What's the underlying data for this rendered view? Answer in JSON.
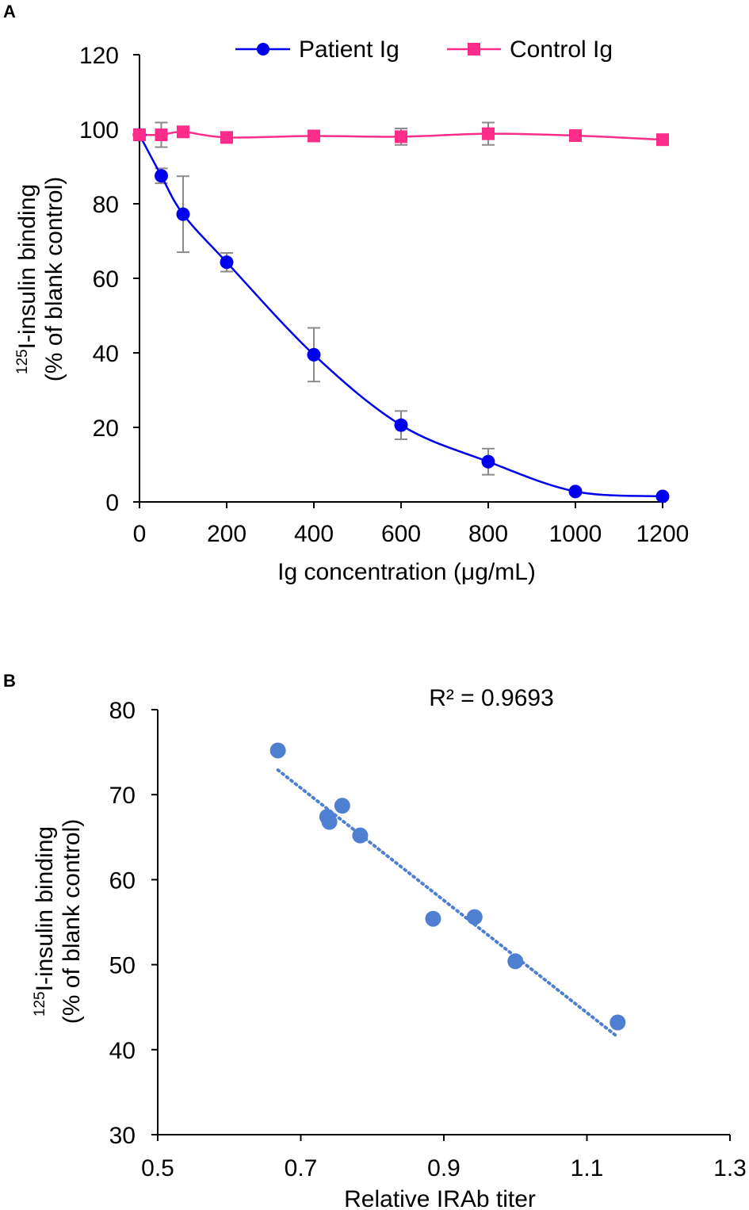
{
  "chart_data": [
    {
      "panel": "A",
      "type": "line",
      "title": "",
      "xlabel": "Ig concentration (μg/mL)",
      "ylabel_sup": "125",
      "ylabel_line1": "I-insulin binding",
      "ylabel_line2": "(% of blank control)",
      "xlim": [
        0,
        1200
      ],
      "ylim": [
        0,
        120
      ],
      "xticks": [
        0,
        200,
        400,
        600,
        800,
        1000,
        1200
      ],
      "yticks": [
        0,
        20,
        40,
        60,
        80,
        100,
        120
      ],
      "grid": false,
      "legend_position": "top",
      "series": [
        {
          "name": "Patient Ig",
          "color": "#0000ee",
          "marker": "circle",
          "x": [
            0,
            50,
            100,
            200,
            400,
            600,
            800,
            1000,
            1200
          ],
          "y": [
            98.5,
            87.5,
            77.2,
            64.3,
            39.5,
            20.6,
            10.8,
            2.8,
            1.5
          ],
          "err": [
            0,
            2,
            10.2,
            2.5,
            7.2,
            3.8,
            3.5,
            0,
            0
          ]
        },
        {
          "name": "Control Ig",
          "color": "#ff2d8a",
          "marker": "square",
          "x": [
            0,
            50,
            100,
            200,
            400,
            600,
            800,
            1000,
            1200
          ],
          "y": [
            98.5,
            98.5,
            99.3,
            97.8,
            98.2,
            98.0,
            98.8,
            98.3,
            97.2
          ],
          "err": [
            0,
            3.3,
            0,
            0,
            0,
            2.2,
            3.0,
            0,
            0
          ]
        }
      ]
    },
    {
      "panel": "B",
      "type": "scatter",
      "title": "",
      "xlabel": "Relative IRAb titer",
      "ylabel_sup": "125",
      "ylabel_line1": "I-insulin binding",
      "ylabel_line2": "(% of blank control)",
      "xlim": [
        0.5,
        1.3
      ],
      "ylim": [
        30,
        80
      ],
      "xticks": [
        "0.5",
        "0.7",
        "0.9",
        "1.1",
        "1.3"
      ],
      "yticks": [
        30,
        40,
        50,
        60,
        70,
        80
      ],
      "grid": false,
      "annotation": "R² = 0.9693",
      "point_color": "#4f7fd0",
      "points": [
        {
          "x": 0.668,
          "y": 75.2
        },
        {
          "x": 0.737,
          "y": 67.4
        },
        {
          "x": 0.74,
          "y": 66.8
        },
        {
          "x": 0.758,
          "y": 68.7
        },
        {
          "x": 0.783,
          "y": 65.2
        },
        {
          "x": 0.885,
          "y": 55.4
        },
        {
          "x": 0.943,
          "y": 55.6
        },
        {
          "x": 1.0,
          "y": 50.4
        },
        {
          "x": 1.143,
          "y": 43.2
        }
      ],
      "trendline": {
        "x": [
          0.668,
          1.143
        ],
        "y": [
          72.9,
          41.5
        ],
        "style": "dotted"
      }
    }
  ]
}
